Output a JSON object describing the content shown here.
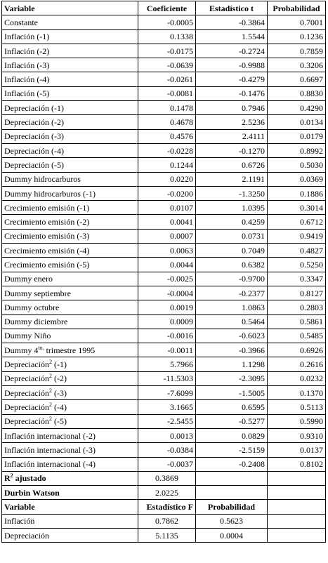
{
  "headers": [
    "Variable",
    "Coeficiente",
    "Estadístico t",
    "Probabilidad"
  ],
  "rows": [
    {
      "label": "Constante",
      "coef": "-0.0005",
      "t": "-0.3864",
      "p": "0.7001"
    },
    {
      "label": "Inflación (-1)",
      "coef": "0.1338",
      "t": "1.5544",
      "p": "0.1236"
    },
    {
      "label": "Inflación (-2)",
      "coef": "-0.0175",
      "t": "-0.2724",
      "p": "0.7859"
    },
    {
      "label": "Inflación (-3)",
      "coef": "-0.0639",
      "t": "-0.9988",
      "p": "0.3206"
    },
    {
      "label": "Inflación (-4)",
      "coef": "-0.0261",
      "t": "-0.4279",
      "p": "0.6697"
    },
    {
      "label": "Inflación (-5)",
      "coef": "-0.0081",
      "t": "-0.1476",
      "p": "0.8830"
    },
    {
      "label": "Depreciación (-1)",
      "coef": "0.1478",
      "t": "0.7946",
      "p": "0.4290"
    },
    {
      "label": "Depreciación (-2)",
      "coef": "0.4678",
      "t": "2.5236",
      "p": "0.0134"
    },
    {
      "label": "Depreciación (-3)",
      "coef": "0.4576",
      "t": "2.4111",
      "p": "0.0179"
    },
    {
      "label": "Depreciación (-4)",
      "coef": "-0.0228",
      "t": "-0.1270",
      "p": "0.8992"
    },
    {
      "label": "Depreciación (-5)",
      "coef": "0.1244",
      "t": "0.6726",
      "p": "0.5030"
    },
    {
      "label": "Dummy hidrocarburos",
      "coef": "0.0220",
      "t": "2.1191",
      "p": "0.0369"
    },
    {
      "label": "Dummy hidrocarburos (-1)",
      "coef": "-0.0200",
      "t": "-1.3250",
      "p": "0.1886"
    },
    {
      "label": "Crecimiento emisión (-1)",
      "coef": "0.0107",
      "t": "1.0395",
      "p": "0.3014"
    },
    {
      "label": "Crecimiento emisión (-2)",
      "coef": "0.0041",
      "t": "0.4259",
      "p": "0.6712"
    },
    {
      "label": "Crecimiento emisión (-3)",
      "coef": "0.0007",
      "t": "0.0731",
      "p": "0.9419"
    },
    {
      "label": "Crecimiento emisión (-4)",
      "coef": "0.0063",
      "t": "0.7049",
      "p": "0.4827"
    },
    {
      "label": "Crecimiento emisión (-5)",
      "coef": "0.0044",
      "t": "0.6382",
      "p": "0.5250"
    },
    {
      "label": "Dummy enero",
      "coef": "-0.0025",
      "t": "-0.9700",
      "p": "0.3347"
    },
    {
      "label": "Dummy septiembre",
      "coef": "-0.0004",
      "t": "-0.2377",
      "p": "0.8127"
    },
    {
      "label": "Dummy octubre",
      "coef": "0.0019",
      "t": "1.0863",
      "p": "0.2803"
    },
    {
      "label": "Dummy diciembre",
      "coef": "0.0009",
      "t": "0.5464",
      "p": "0.5861"
    },
    {
      "label": "Dummy Niño",
      "coef": "-0.0016",
      "t": "-0.6023",
      "p": "0.5485"
    },
    {
      "label": "Dummy 4",
      "sup": "to.",
      "suffix": " trimestre 1995",
      "coef": "-0.0011",
      "t": "-0.3966",
      "p": "0.6926"
    },
    {
      "label": "Depreciación",
      "sup": "2",
      "suffix": " (-1)",
      "coef": "5.7966",
      "t": "1.1298",
      "p": "0.2616"
    },
    {
      "label": "Depreciación",
      "sup": "2",
      "suffix": " (-2)",
      "coef": "-11.5303",
      "t": "-2.3095",
      "p": "0.0232"
    },
    {
      "label": "Depreciación",
      "sup": "2",
      "suffix": " (-3)",
      "coef": "-7.6099",
      "t": "-1.5005",
      "p": "0.1370"
    },
    {
      "label": "Depreciación",
      "sup": "2",
      "suffix": " (-4)",
      "coef": "3.1665",
      "t": "0.6595",
      "p": "0.5113"
    },
    {
      "label": "Depreciación",
      "sup": "2",
      "suffix": " (-5)",
      "coef": "-2.5455",
      "t": "-0.5277",
      "p": "0.5990"
    },
    {
      "label": "Inflación internacional (-2)",
      "coef": "0.0013",
      "t": "0.0829",
      "p": "0.9310"
    },
    {
      "label": "Inflación internacional (-3)",
      "coef": "-0.0384",
      "t": "-2.5159",
      "p": "0.0137"
    },
    {
      "label": "Inflación internacional (-4)",
      "coef": "-0.0037",
      "t": "-0.2408",
      "p": "0.8102"
    }
  ],
  "stats": [
    {
      "label": "R",
      "sup": "2",
      "suffix": " ajustado",
      "value": "0.3869"
    },
    {
      "label": "Durbin Watson",
      "sup": "",
      "suffix": "",
      "value": "2.0225"
    }
  ],
  "ftest_headers": [
    "Variable",
    "Estadístico F",
    "Probabilidad"
  ],
  "ftest_rows": [
    {
      "label": "Inflación",
      "f": "0.7862",
      "p": "0.5623"
    },
    {
      "label": "Depreciación",
      "f": "5.1135",
      "p": "0.0004"
    }
  ]
}
